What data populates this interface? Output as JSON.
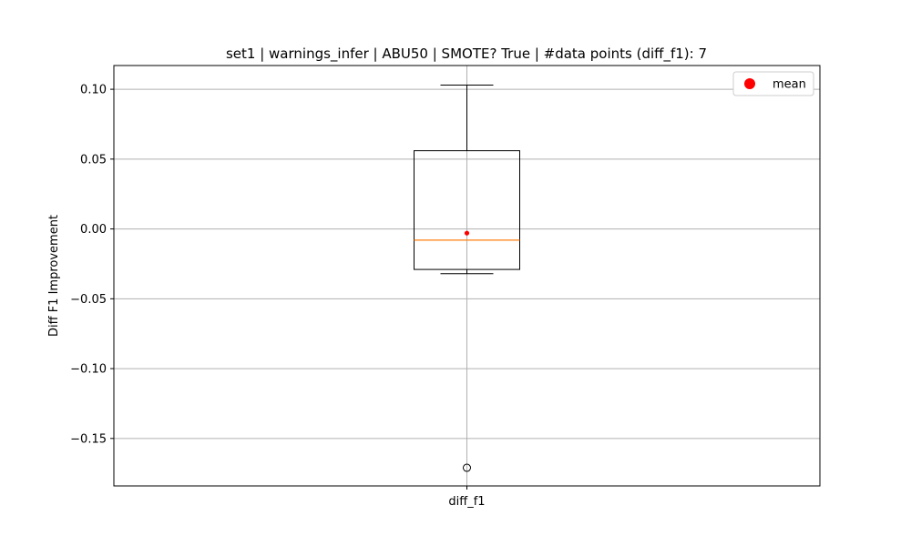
{
  "chart_data": {
    "type": "box",
    "title": "set1 | warnings_infer | ABU50 | SMOTE? True | #data points (diff_f1): 7",
    "xlabel": "",
    "ylabel": "Diff F1 Improvement",
    "categories": [
      "diff_f1"
    ],
    "ylim": [
      -0.184,
      0.117
    ],
    "yticks": [
      0.1,
      0.05,
      0.0,
      -0.05,
      -0.1,
      -0.15
    ],
    "ytick_labels": [
      "0.10",
      "0.05",
      "0.00",
      "−0.05",
      "−0.10",
      "−0.15"
    ],
    "grid": true,
    "legend": {
      "placement": "top-right",
      "entries": [
        "mean"
      ]
    },
    "boxes": [
      {
        "name": "diff_f1",
        "whisker_low": -0.032,
        "q1": -0.029,
        "median": -0.008,
        "q3": 0.056,
        "whisker_high": 0.103,
        "mean": -0.003,
        "outliers": [
          -0.171
        ]
      }
    ],
    "colors": {
      "box": "#000000",
      "median": "#ff7f0e",
      "mean": "#ff0000",
      "grid": "#b0b0b0"
    }
  }
}
